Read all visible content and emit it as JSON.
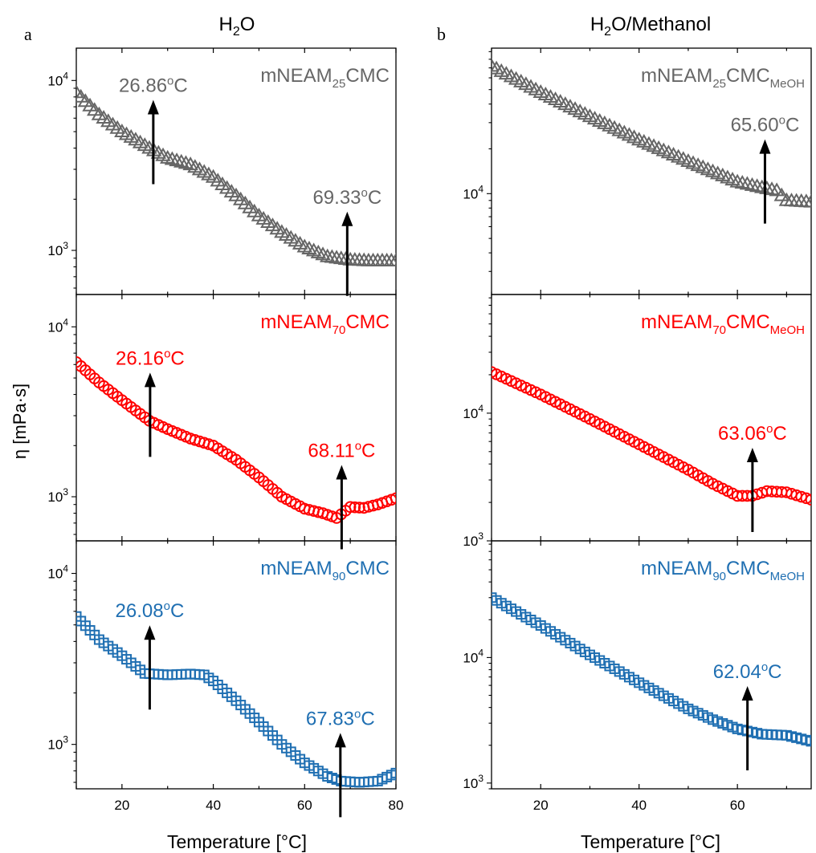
{
  "figure": {
    "columns": [
      {
        "letter": "a",
        "title": "H",
        "title_sub": "2",
        "title_rest": "O",
        "xlabel": "Temperature [°C]",
        "xticks": [
          "20",
          "40",
          "60",
          "80"
        ]
      },
      {
        "letter": "b",
        "title": "H",
        "title_sub": "2",
        "title_rest": "O/Methanol",
        "xlabel": "Temperature [°C]",
        "xticks": [
          "20",
          "40",
          "60"
        ]
      }
    ],
    "ylabel": "η  [mPa·s]"
  },
  "chart_data": [
    {
      "id": "a1",
      "type": "scatter",
      "marker": "triangle",
      "color": "#666666",
      "series_label": {
        "pre": "mNEAM",
        "sub": "25",
        "post": "CMC",
        "sub2": ""
      },
      "xlim": [
        10,
        80
      ],
      "ylim": [
        550,
        15500
      ],
      "yscale": "log",
      "yticks": [
        {
          "v": 1000,
          "base": "10",
          "exp": "3"
        },
        {
          "v": 10000,
          "base": "10",
          "exp": "4"
        }
      ],
      "anchors": [
        [
          10,
          8500
        ],
        [
          15,
          6300
        ],
        [
          20,
          5000
        ],
        [
          26,
          4000
        ],
        [
          30,
          3500
        ],
        [
          35,
          3200
        ],
        [
          40,
          2700
        ],
        [
          45,
          2100
        ],
        [
          50,
          1600
        ],
        [
          55,
          1280
        ],
        [
          60,
          1050
        ],
        [
          65,
          920
        ],
        [
          70,
          880
        ],
        [
          74,
          870
        ],
        [
          80,
          870
        ]
      ],
      "annotations": [
        {
          "label": "26.86°C",
          "x": 26.86,
          "y": 4000
        },
        {
          "label": "69.33°C",
          "x": 69.33,
          "y": 880
        }
      ]
    },
    {
      "id": "a2",
      "type": "scatter",
      "marker": "circle",
      "color": "#ff0000",
      "series_label": {
        "pre": "mNEAM",
        "sub": "70",
        "post": "CMC",
        "sub2": ""
      },
      "xlim": [
        10,
        80
      ],
      "ylim": [
        550,
        15500
      ],
      "yscale": "log",
      "yticks": [
        {
          "v": 1000,
          "base": "10",
          "exp": "3"
        },
        {
          "v": 10000,
          "base": "10",
          "exp": "4"
        }
      ],
      "anchors": [
        [
          10,
          6200
        ],
        [
          15,
          4700
        ],
        [
          20,
          3700
        ],
        [
          26,
          2800
        ],
        [
          30,
          2500
        ],
        [
          35,
          2200
        ],
        [
          40,
          2000
        ],
        [
          45,
          1650
        ],
        [
          50,
          1300
        ],
        [
          55,
          1000
        ],
        [
          60,
          850
        ],
        [
          64,
          800
        ],
        [
          67,
          750
        ],
        [
          70,
          870
        ],
        [
          73,
          860
        ],
        [
          76,
          900
        ],
        [
          80,
          980
        ]
      ],
      "annotations": [
        {
          "label": "26.16°C",
          "x": 26.16,
          "y": 2800
        },
        {
          "label": "68.11°C",
          "x": 68.11,
          "y": 800
        }
      ]
    },
    {
      "id": "a3",
      "type": "scatter",
      "marker": "square",
      "color": "#1f6fb2",
      "series_label": {
        "pre": "mNEAM",
        "sub": "90",
        "post": "CMC",
        "sub2": ""
      },
      "xlim": [
        10,
        80
      ],
      "ylim": [
        550,
        15500
      ],
      "yscale": "log",
      "yticks": [
        {
          "v": 1000,
          "base": "10",
          "exp": "3"
        },
        {
          "v": 10000,
          "base": "10",
          "exp": "4"
        }
      ],
      "anchors": [
        [
          10,
          5600
        ],
        [
          15,
          4100
        ],
        [
          20,
          3300
        ],
        [
          25,
          2600
        ],
        [
          30,
          2550
        ],
        [
          35,
          2580
        ],
        [
          38,
          2550
        ],
        [
          40,
          2350
        ],
        [
          45,
          1800
        ],
        [
          50,
          1350
        ],
        [
          55,
          1000
        ],
        [
          60,
          780
        ],
        [
          65,
          650
        ],
        [
          68,
          610
        ],
        [
          72,
          600
        ],
        [
          76,
          610
        ],
        [
          80,
          680
        ]
      ],
      "annotations": [
        {
          "label": "26.08°C",
          "x": 26.08,
          "y": 2600
        },
        {
          "label": "67.83°C",
          "x": 67.83,
          "y": 610
        }
      ]
    },
    {
      "id": "b1",
      "type": "scatter",
      "marker": "triangle",
      "color": "#666666",
      "series_label": {
        "pre": "mNEAM",
        "sub": "25",
        "post": "CMC",
        "sub2": "MeOH"
      },
      "xlim": [
        10,
        75
      ],
      "ylim": [
        2100,
        95000
      ],
      "yscale": "log",
      "yticks": [
        {
          "v": 10000,
          "base": "10",
          "exp": "4"
        }
      ],
      "anchors": [
        [
          10,
          72000
        ],
        [
          20,
          48000
        ],
        [
          30,
          33000
        ],
        [
          40,
          23000
        ],
        [
          50,
          16500
        ],
        [
          60,
          12000
        ],
        [
          65,
          11000
        ],
        [
          68,
          10500
        ],
        [
          70,
          9000
        ],
        [
          75,
          8800
        ]
      ],
      "annotations": [
        {
          "label": "65.60°C",
          "x": 65.6,
          "y": 11000
        }
      ]
    },
    {
      "id": "b2",
      "type": "scatter",
      "marker": "circle",
      "color": "#ff0000",
      "series_label": {
        "pre": "mNEAM",
        "sub": "70",
        "post": "CMC",
        "sub2": "MeOH"
      },
      "xlim": [
        10,
        75
      ],
      "ylim": [
        1000,
        85000
      ],
      "yscale": "log",
      "yticks": [
        {
          "v": 1000,
          "base": "10",
          "exp": "3"
        },
        {
          "v": 10000,
          "base": "10",
          "exp": "4"
        }
      ],
      "anchors": [
        [
          10,
          21000
        ],
        [
          20,
          14000
        ],
        [
          30,
          9000
        ],
        [
          40,
          5700
        ],
        [
          50,
          3600
        ],
        [
          55,
          2800
        ],
        [
          60,
          2250
        ],
        [
          63,
          2250
        ],
        [
          66,
          2450
        ],
        [
          70,
          2400
        ],
        [
          75,
          2100
        ]
      ],
      "annotations": [
        {
          "label": "63.06°C",
          "x": 63.06,
          "y": 2250
        }
      ]
    },
    {
      "id": "b3",
      "type": "scatter",
      "marker": "square",
      "color": "#1f6fb2",
      "series_label": {
        "pre": "mNEAM",
        "sub": "90",
        "post": "CMC",
        "sub2": "MeOH"
      },
      "xlim": [
        10,
        75
      ],
      "ylim": [
        900,
        85000
      ],
      "yscale": "log",
      "yticks": [
        {
          "v": 1000,
          "base": "10",
          "exp": "3"
        },
        {
          "v": 10000,
          "base": "10",
          "exp": "4"
        }
      ],
      "anchors": [
        [
          10,
          30000
        ],
        [
          20,
          18000
        ],
        [
          30,
          10500
        ],
        [
          40,
          6300
        ],
        [
          50,
          3900
        ],
        [
          55,
          3200
        ],
        [
          60,
          2700
        ],
        [
          65,
          2450
        ],
        [
          70,
          2400
        ],
        [
          75,
          2150
        ]
      ],
      "annotations": [
        {
          "label": "62.04°C",
          "x": 62.04,
          "y": 2450
        }
      ]
    }
  ]
}
